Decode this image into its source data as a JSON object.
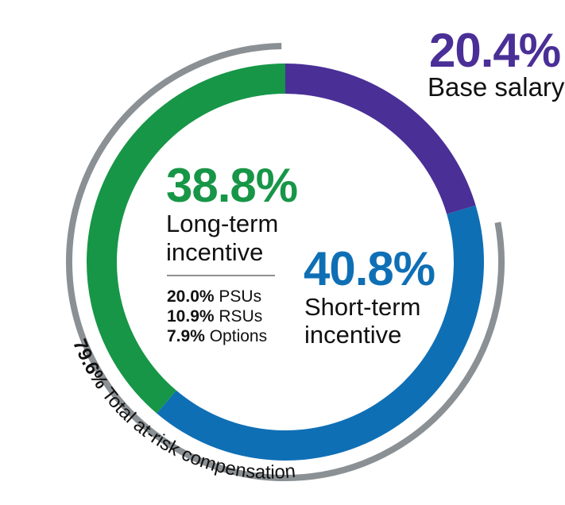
{
  "chart_data": {
    "type": "pie",
    "slices": [
      {
        "value": 20.4,
        "value_label": "20.4%",
        "label": "Base salary",
        "color": "#4a2f97"
      },
      {
        "value": 40.8,
        "value_label": "40.8%",
        "label_line1": "Short-term",
        "label_line2": "incentive",
        "color": "#0f6fb5"
      },
      {
        "value": 38.8,
        "value_label": "38.8%",
        "label_line1": "Long-term",
        "label_line2": "incentive",
        "color": "#179647"
      }
    ],
    "long_term_breakdown": [
      {
        "value_label": "20.0%",
        "label": "PSUs"
      },
      {
        "value_label": "10.9%",
        "label": "RSUs"
      },
      {
        "value_label": "7.9%",
        "label": "Options"
      }
    ],
    "at_risk": {
      "value": 79.6,
      "value_label": "79.6%",
      "label": "Total at-risk compensation",
      "color": "#8a9094"
    }
  }
}
